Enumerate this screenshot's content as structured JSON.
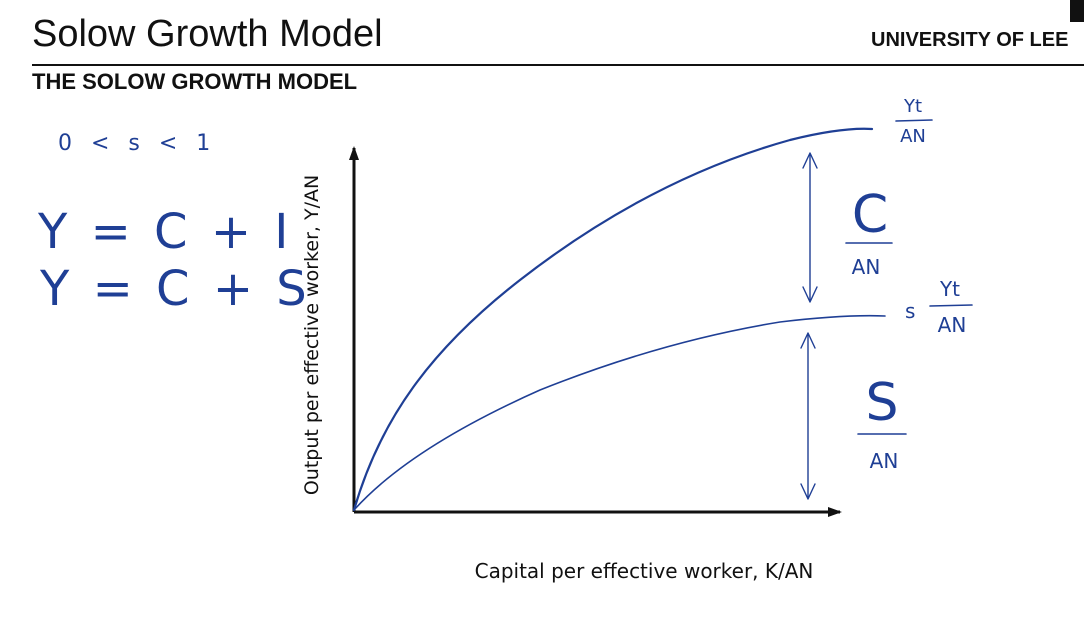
{
  "slide": {
    "title": "Solow Growth Model",
    "subtitle": "THE SOLOW GROWTH MODEL",
    "university": "UNIVERSITY OF LEE"
  },
  "axes": {
    "x_label": "Capital per effective worker, K/AN",
    "y_label": "Output per effective worker, Y/AN"
  },
  "handwriting": {
    "constraint": "0 < s < 1",
    "eq1": "Y = C + I",
    "eq2": "Y = C + S",
    "output_curve": {
      "num": "Yt",
      "den": "AN"
    },
    "saving_curve": {
      "prefix": "s",
      "num": "Yt",
      "den": "AN"
    },
    "consumption": {
      "num": "C",
      "den": "AN"
    },
    "saving": {
      "num": "S",
      "den": "AN"
    }
  },
  "colors": {
    "ink": "#1f3f95",
    "text": "#111111"
  }
}
